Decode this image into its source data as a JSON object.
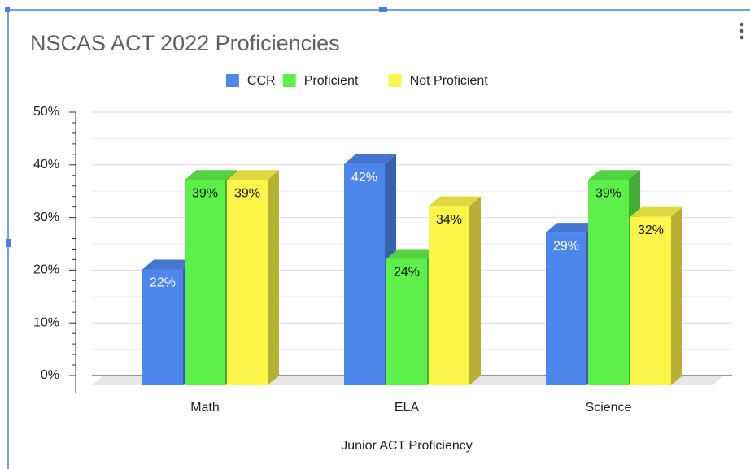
{
  "chart_data": {
    "type": "bar3d",
    "title": "NSCAS ACT 2022 Proficiencies",
    "x_label": "Junior ACT Proficiency",
    "categories": [
      "Math",
      "ELA",
      "Science"
    ],
    "series": [
      {
        "name": "CCR",
        "color": "#4f86ec",
        "values": [
          22,
          42,
          29
        ],
        "value_labels": [
          "22%",
          "42%",
          "29%"
        ]
      },
      {
        "name": "Proficient",
        "color": "#5ef04a",
        "values": [
          39,
          24,
          39
        ],
        "value_labels": [
          "39%",
          "24%",
          "39%"
        ]
      },
      {
        "name": "Not Proficient",
        "color": "#fdf64a",
        "values": [
          39,
          34,
          32
        ],
        "value_labels": [
          "39%",
          "34%",
          "32%"
        ]
      }
    ],
    "ylim": [
      0,
      50
    ],
    "yticks": [
      {
        "value": 0,
        "label": "0%"
      },
      {
        "value": 10,
        "label": "10%"
      },
      {
        "value": 20,
        "label": "20%"
      },
      {
        "value": 30,
        "label": "30%"
      },
      {
        "value": 40,
        "label": "40%"
      },
      {
        "value": 50,
        "label": "50%"
      }
    ],
    "grid": true,
    "legend": "top"
  }
}
